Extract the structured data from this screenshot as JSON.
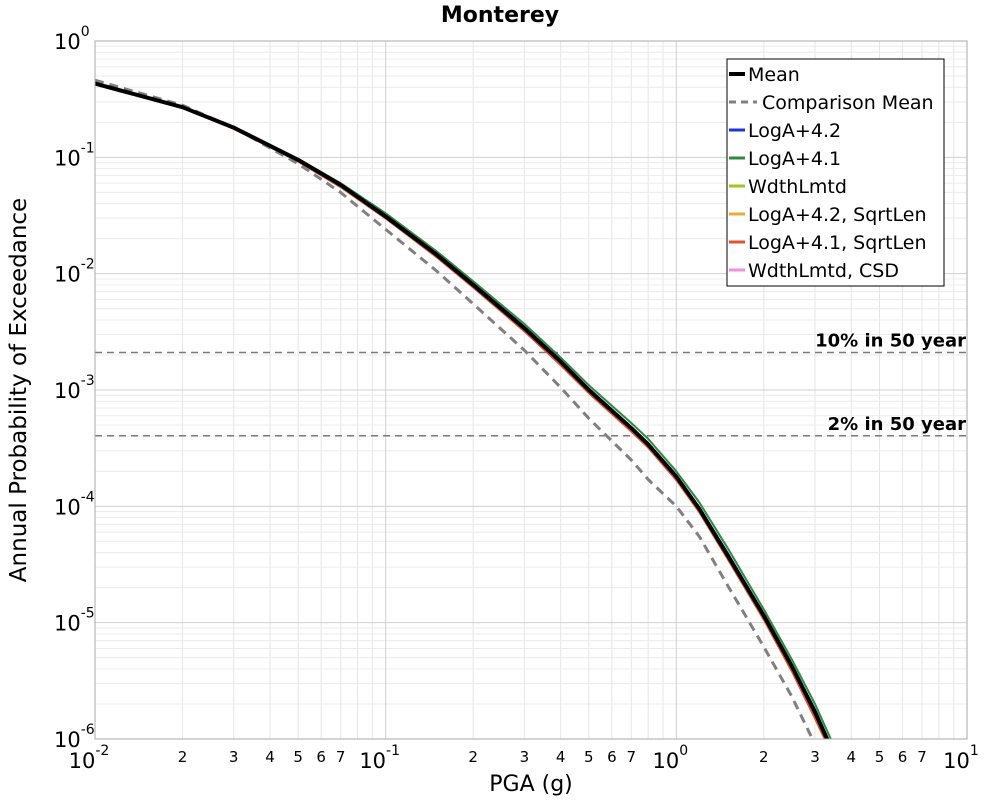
{
  "chart_data": {
    "type": "line",
    "title": "Monterey",
    "xlabel": "PGA (g)",
    "ylabel": "Annual Probability of Exceedance",
    "x_scale": "log",
    "y_scale": "log",
    "xlim": [
      0.01,
      10
    ],
    "ylim": [
      1e-06,
      1
    ],
    "grid": true,
    "legend_position": "top-right",
    "x_major_ticks": [
      {
        "base": "10",
        "exp": "-2",
        "value": 0.01
      },
      {
        "base": "10",
        "exp": "-1",
        "value": 0.1
      },
      {
        "base": "10",
        "exp": "0",
        "value": 1
      },
      {
        "base": "10",
        "exp": "1",
        "value": 10
      }
    ],
    "y_major_ticks": [
      {
        "base": "10",
        "exp": "0",
        "value": 1
      },
      {
        "base": "10",
        "exp": "-1",
        "value": 0.1
      },
      {
        "base": "10",
        "exp": "-2",
        "value": 0.01
      },
      {
        "base": "10",
        "exp": "-3",
        "value": 0.001
      },
      {
        "base": "10",
        "exp": "-4",
        "value": 0.0001
      },
      {
        "base": "10",
        "exp": "-5",
        "value": 1e-05
      },
      {
        "base": "10",
        "exp": "-6",
        "value": 1e-06
      }
    ],
    "x_minor_tick_labels": [
      "2",
      "3",
      "4",
      "5",
      "6",
      "7"
    ],
    "reference_lines": [
      {
        "label": "10% in 50 year",
        "y": 0.0021
      },
      {
        "label": "2% in 50 year",
        "y": 0.000404
      }
    ],
    "series": [
      {
        "name": "Mean",
        "color": "#000000",
        "style": "solid",
        "width": 4,
        "x": [
          0.01,
          0.02,
          0.03,
          0.05,
          0.07,
          0.1,
          0.15,
          0.2,
          0.3,
          0.4,
          0.5,
          0.7,
          0.8,
          1.0,
          1.2,
          1.5,
          2.0,
          2.5,
          3.0,
          3.5
        ],
        "y": [
          0.43,
          0.27,
          0.18,
          0.095,
          0.058,
          0.031,
          0.0145,
          0.008,
          0.0034,
          0.00175,
          0.001,
          0.00047,
          0.00034,
          0.00018,
          9.5e-05,
          3.8e-05,
          1.15e-05,
          4.2e-06,
          1.7e-06,
          7.2e-07
        ]
      },
      {
        "name": "Comparison Mean",
        "color": "#808080",
        "style": "dashed",
        "width": 3,
        "x": [
          0.01,
          0.02,
          0.03,
          0.05,
          0.07,
          0.1,
          0.15,
          0.2,
          0.3,
          0.4,
          0.5,
          0.7,
          0.8,
          1.0,
          1.2,
          1.5,
          2.0,
          2.5,
          3.0,
          3.4
        ],
        "y": [
          0.46,
          0.28,
          0.18,
          0.088,
          0.05,
          0.024,
          0.0105,
          0.0055,
          0.0022,
          0.00105,
          0.00057,
          0.00025,
          0.00017,
          0.0001,
          5.5e-05,
          2.1e-05,
          6.2e-06,
          2.3e-06,
          9e-07,
          5e-07
        ]
      },
      {
        "name": "LogA+4.2",
        "color": "#1a35e8",
        "style": "solid",
        "width": 2,
        "x": [
          0.01,
          0.02,
          0.03,
          0.05,
          0.07,
          0.1,
          0.15,
          0.2,
          0.3,
          0.4,
          0.5,
          0.7,
          0.8,
          1.0,
          1.2,
          1.5,
          2.0,
          2.5,
          3.0,
          3.5
        ],
        "y": [
          0.43,
          0.27,
          0.18,
          0.096,
          0.059,
          0.032,
          0.015,
          0.0083,
          0.0035,
          0.0018,
          0.00103,
          0.00048,
          0.00035,
          0.000185,
          9.8e-05,
          4e-05,
          1.18e-05,
          4.3e-06,
          1.8e-06,
          7.5e-07
        ]
      },
      {
        "name": "LogA+4.1",
        "color": "#2e8b3e",
        "style": "solid",
        "width": 2,
        "x": [
          0.01,
          0.02,
          0.03,
          0.05,
          0.07,
          0.1,
          0.15,
          0.2,
          0.3,
          0.4,
          0.5,
          0.7,
          0.8,
          1.0,
          1.2,
          1.5,
          2.0,
          2.5,
          3.0,
          3.5
        ],
        "y": [
          0.43,
          0.272,
          0.182,
          0.097,
          0.06,
          0.033,
          0.0155,
          0.0086,
          0.0037,
          0.0019,
          0.0011,
          0.00052,
          0.00038,
          0.0002,
          0.000108,
          4.4e-05,
          1.3e-05,
          4.8e-06,
          2e-06,
          8.5e-07
        ]
      },
      {
        "name": "WdthLmtd",
        "color": "#a3c716",
        "style": "solid",
        "width": 2,
        "x": [
          0.01,
          0.02,
          0.03,
          0.05,
          0.07,
          0.1,
          0.15,
          0.2,
          0.3,
          0.4,
          0.5,
          0.7,
          0.8,
          1.0,
          1.2,
          1.5,
          2.0,
          2.5,
          3.0,
          3.5
        ],
        "y": [
          0.425,
          0.268,
          0.178,
          0.094,
          0.057,
          0.0305,
          0.0142,
          0.0078,
          0.0033,
          0.0017,
          0.00098,
          0.00046,
          0.00033,
          0.000175,
          9.2e-05,
          3.7e-05,
          1.1e-05,
          4e-06,
          1.6e-06,
          7e-07
        ]
      },
      {
        "name": "LogA+4.2, SqrtLen",
        "color": "#f0a830",
        "style": "solid",
        "width": 2,
        "x": [
          0.01,
          0.02,
          0.03,
          0.05,
          0.07,
          0.1,
          0.15,
          0.2,
          0.3,
          0.4,
          0.5,
          0.7,
          0.8,
          1.0,
          1.2,
          1.5,
          2.0,
          2.5,
          3.0,
          3.5
        ],
        "y": [
          0.425,
          0.267,
          0.177,
          0.093,
          0.056,
          0.03,
          0.014,
          0.0077,
          0.0032,
          0.00165,
          0.00095,
          0.00045,
          0.00032,
          0.00017,
          9e-05,
          3.6e-05,
          1.08e-05,
          3.9e-06,
          1.6e-06,
          6.8e-07
        ]
      },
      {
        "name": "LogA+4.1, SqrtLen",
        "color": "#e8502a",
        "style": "solid",
        "width": 2,
        "x": [
          0.01,
          0.02,
          0.03,
          0.05,
          0.07,
          0.1,
          0.15,
          0.2,
          0.3,
          0.4,
          0.5,
          0.7,
          0.8,
          1.0,
          1.2,
          1.5,
          2.0,
          2.5,
          3.0,
          3.5
        ],
        "y": [
          0.424,
          0.266,
          0.176,
          0.092,
          0.0555,
          0.0298,
          0.0138,
          0.0076,
          0.0032,
          0.00163,
          0.00094,
          0.00044,
          0.00032,
          0.000168,
          8.9e-05,
          3.55e-05,
          1.06e-05,
          3.8e-06,
          1.5e-06,
          6.6e-07
        ]
      },
      {
        "name": "WdthLmtd, CSD",
        "color": "#f58ee0",
        "style": "solid",
        "width": 2,
        "x": [
          0.01,
          0.02,
          0.03,
          0.05,
          0.07,
          0.1,
          0.15,
          0.2,
          0.3,
          0.4,
          0.5,
          0.7,
          0.8,
          1.0,
          1.2,
          1.5,
          2.0,
          2.5,
          3.0,
          3.5
        ],
        "y": [
          0.428,
          0.269,
          0.179,
          0.0945,
          0.0575,
          0.0308,
          0.0144,
          0.0079,
          0.00335,
          0.00172,
          0.00099,
          0.00046,
          0.00034,
          0.000178,
          9.4e-05,
          3.75e-05,
          1.13e-05,
          4.1e-06,
          1.7e-06,
          7.1e-07
        ]
      }
    ]
  }
}
